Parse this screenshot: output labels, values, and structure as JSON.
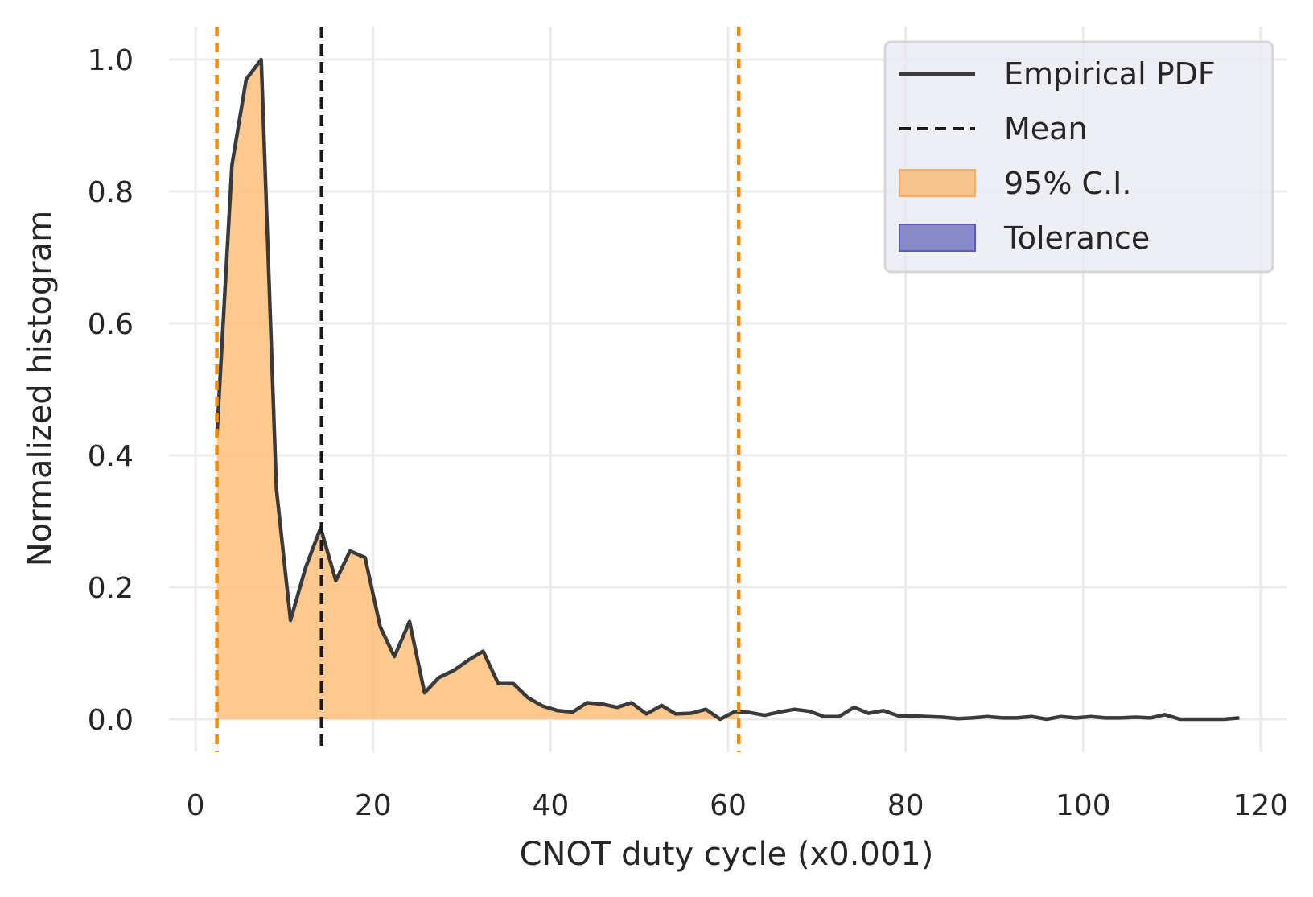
{
  "chart_data": {
    "type": "line",
    "xlabel": "CNOT duty cycle (x0.001)",
    "ylabel": "Normalized histogram",
    "xlim": [
      -3,
      123
    ],
    "ylim": [
      -0.05,
      1.05
    ],
    "x_ticks": [
      0,
      20,
      40,
      60,
      80,
      100,
      120
    ],
    "x_tick_labels": [
      "0",
      "20",
      "40",
      "60",
      "80",
      "100",
      "120"
    ],
    "y_ticks": [
      0.0,
      0.2,
      0.4,
      0.6,
      0.8,
      1.0
    ],
    "y_tick_labels": [
      "0.0",
      "0.2",
      "0.4",
      "0.6",
      "0.8",
      "1.0"
    ],
    "grid": true,
    "legend_position": "top-right",
    "colors": {
      "pdf_line": "#3a3a3a",
      "mean_line": "#1a1a1a",
      "ci_fill": "#fdc07a",
      "ci_bounds": "#f28a0c",
      "tolerance_fill": "#8a8acb",
      "tolerance_edge": "#5c5cbf",
      "grid": "#ebebeb",
      "legend_bg": "#eaeaf2"
    },
    "series": [
      {
        "name": "Empirical PDF",
        "x": [
          2.4,
          4.1,
          5.7,
          7.4,
          9.1,
          10.7,
          12.4,
          14.1,
          15.8,
          17.4,
          19.1,
          20.8,
          22.4,
          24.1,
          25.8,
          27.4,
          29.1,
          30.8,
          32.4,
          34.1,
          35.8,
          37.4,
          39.1,
          40.8,
          42.5,
          44.1,
          45.8,
          47.5,
          49.1,
          50.8,
          52.5,
          54.1,
          55.8,
          57.5,
          59.1,
          60.8,
          62.5,
          64.1,
          65.8,
          67.5,
          69.2,
          70.8,
          72.5,
          74.2,
          75.8,
          77.5,
          79.2,
          80.8,
          82.5,
          84.2,
          85.9,
          87.5,
          89.2,
          90.9,
          92.5,
          94.2,
          95.9,
          97.5,
          99.2,
          100.9,
          102.5,
          104.2,
          105.9,
          107.6,
          109.2,
          110.9,
          112.6,
          114.2,
          115.9,
          117.6
        ],
        "y": [
          0.43,
          0.84,
          0.97,
          1.0,
          0.35,
          0.15,
          0.23,
          0.29,
          0.21,
          0.255,
          0.245,
          0.14,
          0.095,
          0.148,
          0.04,
          0.063,
          0.074,
          0.09,
          0.103,
          0.054,
          0.054,
          0.033,
          0.02,
          0.013,
          0.011,
          0.025,
          0.023,
          0.018,
          0.025,
          0.008,
          0.021,
          0.008,
          0.009,
          0.015,
          0.0,
          0.012,
          0.01,
          0.006,
          0.011,
          0.015,
          0.012,
          0.004,
          0.004,
          0.018,
          0.009,
          0.013,
          0.005,
          0.005,
          0.004,
          0.003,
          0.001,
          0.002,
          0.004,
          0.002,
          0.002,
          0.004,
          0.0,
          0.004,
          0.002,
          0.004,
          0.002,
          0.002,
          0.003,
          0.002,
          0.007,
          0.0,
          0.0,
          0.0,
          0.0,
          0.002
        ]
      }
    ],
    "mean": 14.2,
    "ci_95": [
      2.4,
      61.2
    ],
    "legend": [
      "Empirical PDF",
      "Mean",
      "95% C.I.",
      "Tolerance"
    ]
  }
}
